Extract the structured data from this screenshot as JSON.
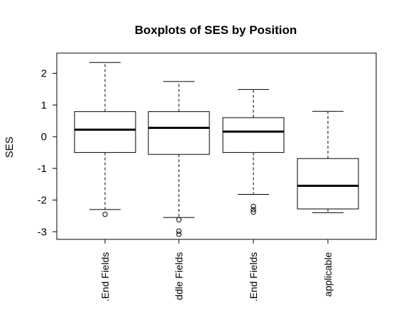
{
  "chart_data": {
    "type": "boxplot",
    "title": "Boxplots of SES by Position",
    "xlabel": "",
    "ylabel": "SES",
    "ylim": [
      -3.3,
      2.6
    ],
    "yticks": [
      -3,
      -2,
      -1,
      0,
      1,
      2
    ],
    "ytick_labels": [
      "-3",
      "-2",
      "-1",
      "0",
      "1",
      "2"
    ],
    "categories": [
      ".End Fields",
      "ddle Fields",
      ".End Fields",
      "applicable"
    ],
    "boxes": [
      {
        "whisker_low": -2.3,
        "q1": -0.5,
        "median": 0.22,
        "q3": 0.79,
        "whisker_high": 2.34,
        "outliers": [
          -2.45
        ]
      },
      {
        "whisker_low": -2.55,
        "q1": -0.56,
        "median": 0.28,
        "q3": 0.79,
        "whisker_high": 1.74,
        "outliers": [
          -2.62,
          -2.98,
          -3.08
        ]
      },
      {
        "whisker_low": -1.82,
        "q1": -0.5,
        "median": 0.16,
        "q3": 0.6,
        "whisker_high": 1.49,
        "outliers": [
          -2.2,
          -2.3,
          -2.38
        ]
      },
      {
        "whisker_low": -2.4,
        "q1": -2.28,
        "median": -1.55,
        "q3": -0.69,
        "whisker_high": 0.8,
        "outliers": []
      }
    ],
    "grid": false,
    "legend": "none"
  }
}
